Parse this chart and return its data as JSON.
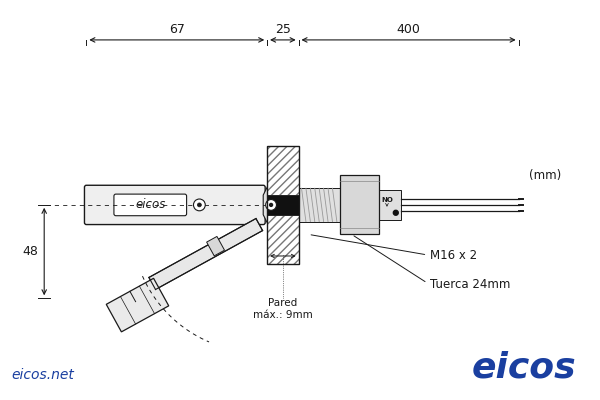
{
  "bg_color": "#ffffff",
  "line_color": "#1a1a1a",
  "gray_fill": "#e8e8e8",
  "dark_fill": "#c0c0c0",
  "black_fill": "#111111",
  "hatch_color": "#777777",
  "blue_color": "#1a3fa0",
  "annotations": {
    "dim_67": "67",
    "dim_25": "25",
    "dim_400": "400",
    "dim_48": "48",
    "unit": "(mm)",
    "m16": "M16 x 2",
    "tuerca": "Tuerca 24mm",
    "pared": "Pared\nmáx.: 9mm",
    "eicos_label": "eicos",
    "eicos_net": "eicos.net",
    "eicos_brand": "eicos"
  },
  "figsize": [
    6.0,
    4.0
  ],
  "dpi": 100
}
